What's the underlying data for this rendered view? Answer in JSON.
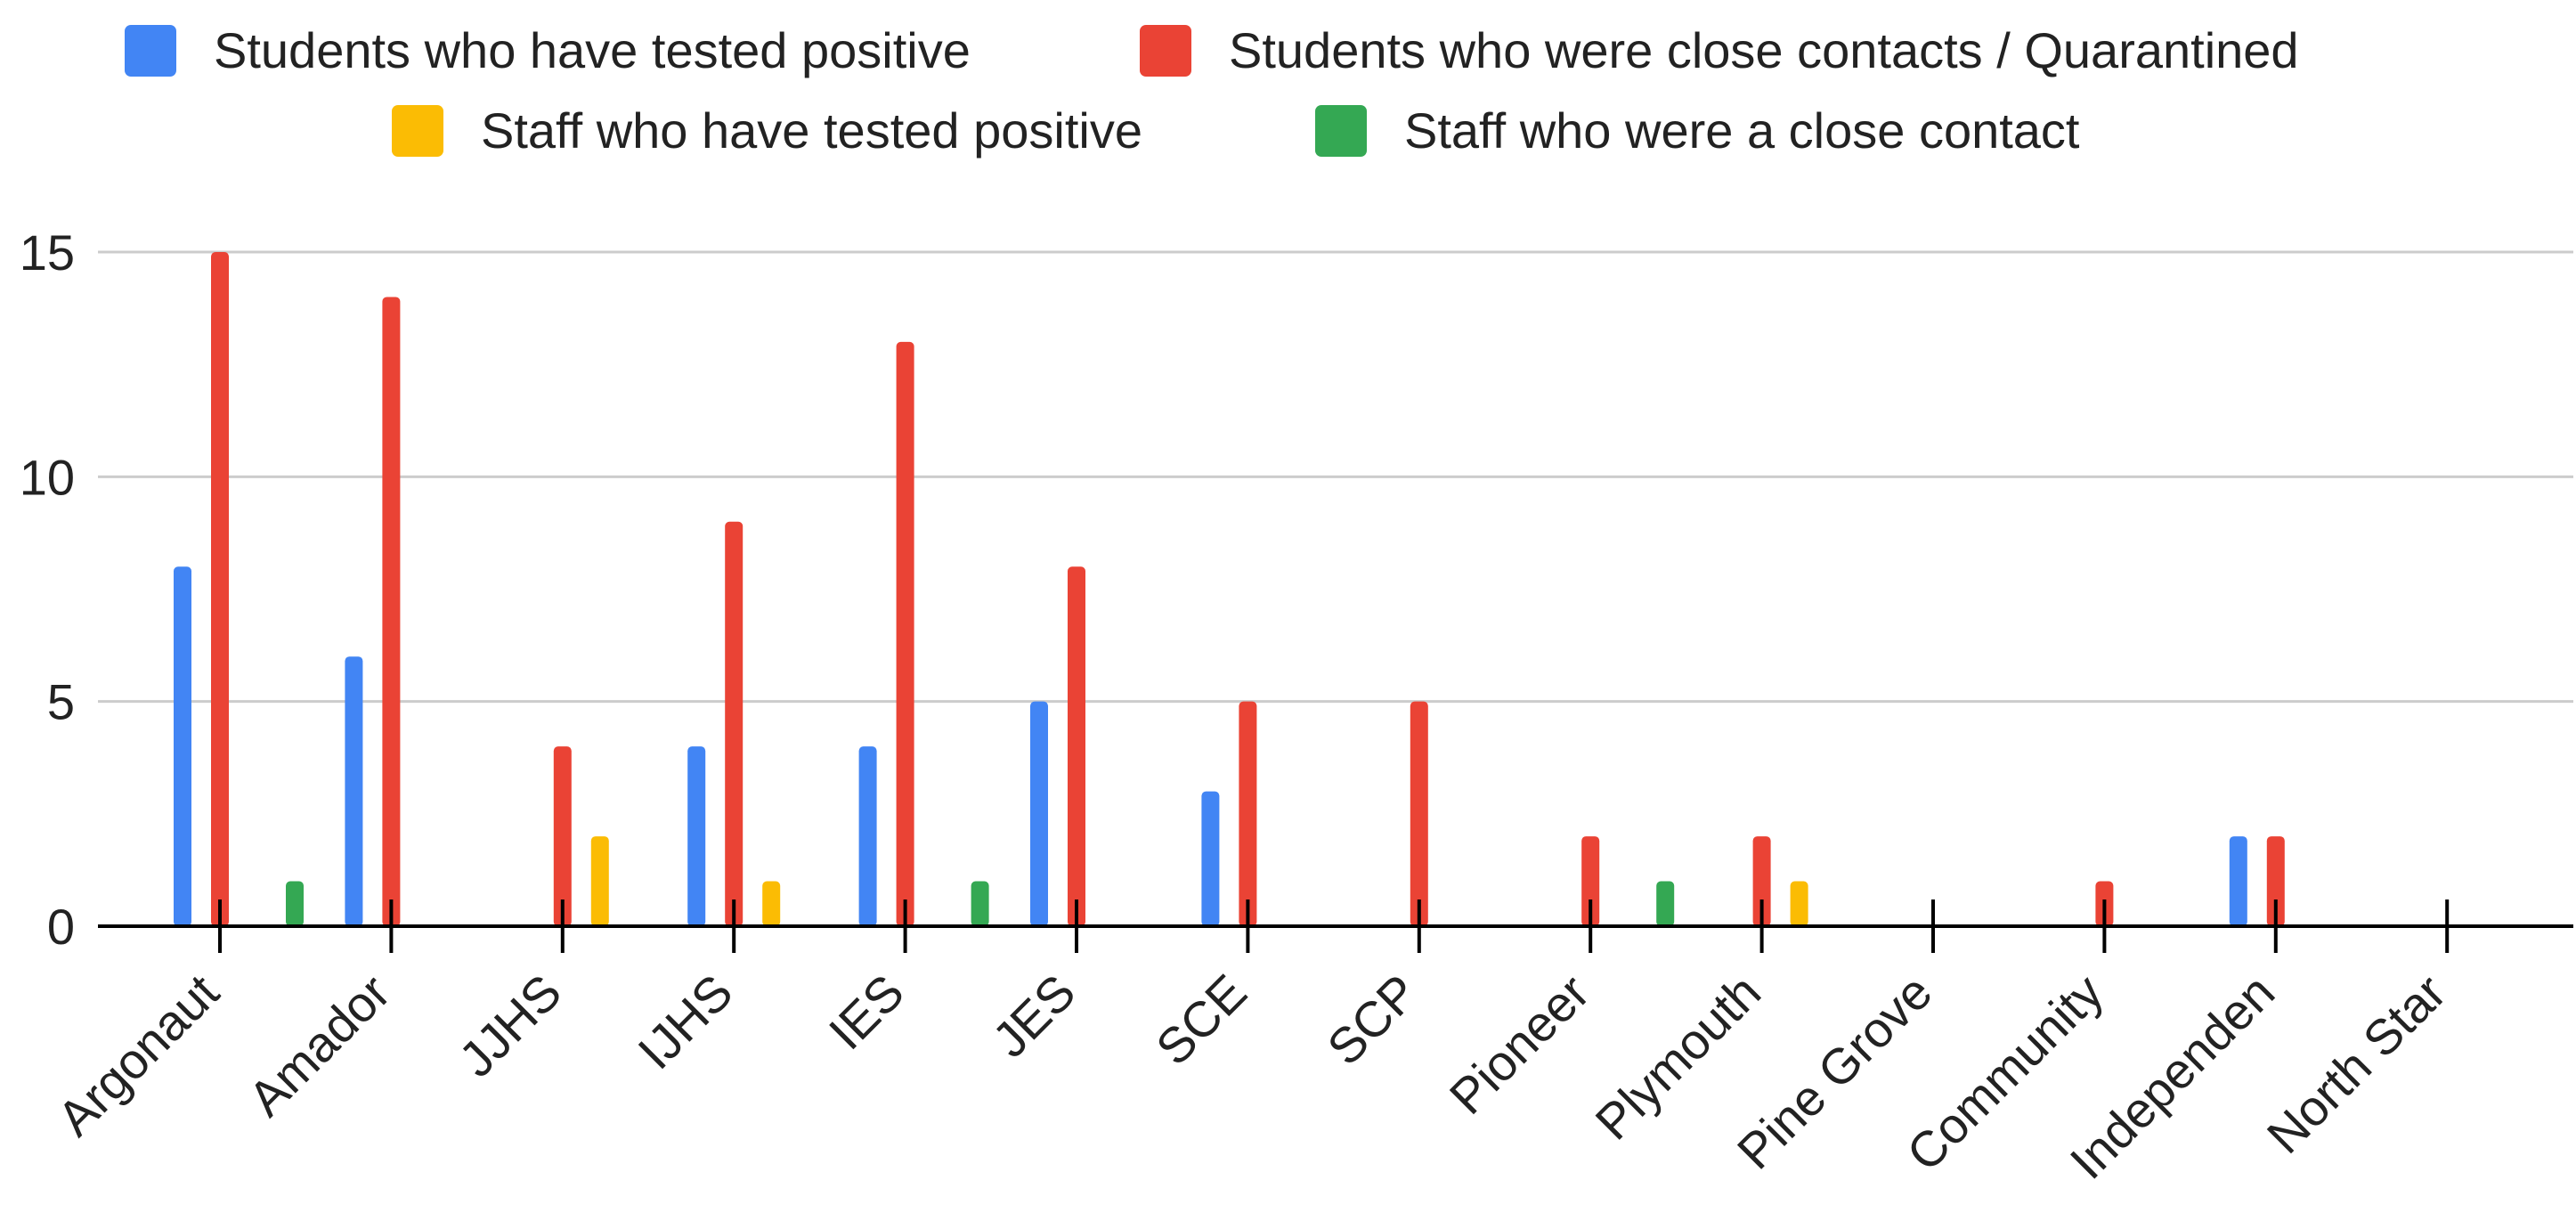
{
  "chart_data": {
    "type": "bar",
    "categories": [
      "Argonaut",
      "Amador",
      "JJHS",
      "IJHS",
      "IES",
      "JES",
      "SCE",
      "SCP",
      "Pioneer",
      "Plymouth",
      "Pine Grove",
      "Community",
      "Independen",
      "North Star"
    ],
    "series": [
      {
        "name": "Students who have tested positive",
        "color": "#4285F4",
        "values": [
          8,
          6,
          0,
          4,
          4,
          5,
          3,
          0,
          0,
          0,
          0,
          0,
          2,
          0
        ]
      },
      {
        "name": "Students who were close contacts / Quarantined",
        "color": "#EA4335",
        "values": [
          15,
          14,
          4,
          9,
          13,
          8,
          5,
          5,
          2,
          2,
          0,
          1,
          2,
          0
        ]
      },
      {
        "name": "Staff who have tested positive",
        "color": "#FBBC04",
        "values": [
          0,
          0,
          2,
          1,
          0,
          0,
          0,
          0,
          0,
          1,
          0,
          0,
          0,
          0
        ]
      },
      {
        "name": "Staff who were a close contact",
        "color": "#34A853",
        "values": [
          1,
          0,
          0,
          0,
          1,
          0,
          0,
          0,
          1,
          0,
          0,
          0,
          0,
          0
        ]
      }
    ],
    "yticks": [
      0,
      5,
      10,
      15
    ],
    "ylim": [
      0,
      15
    ],
    "grid": true,
    "legend_position": "top",
    "title": "",
    "xlabel": "",
    "ylabel": ""
  }
}
